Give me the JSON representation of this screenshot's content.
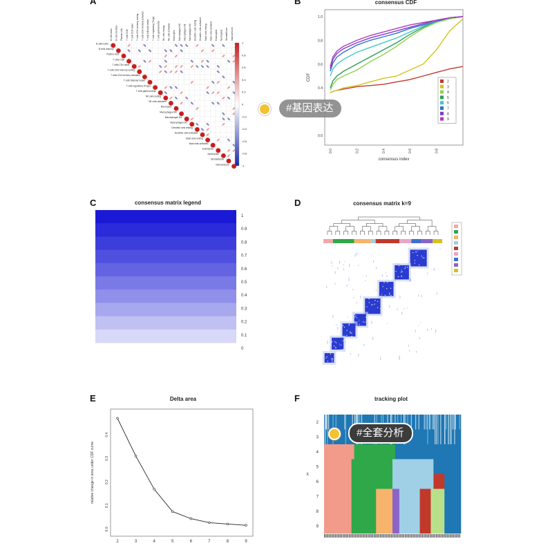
{
  "panel_letters": [
    "A",
    "B",
    "C",
    "D",
    "E",
    "F"
  ],
  "tags": [
    {
      "label": "#基因表达",
      "colors": {
        "pill": "#8a8a8a",
        "dot": "#f2c230"
      }
    },
    {
      "label": "#全套分析",
      "colors": {
        "pill": "#3c3c3c",
        "dot": "#f2c230"
      }
    }
  ],
  "chart_data": [
    {
      "panel": "A",
      "type": "heatmap",
      "title": "",
      "cell_types": [
        "B cells naive",
        "B cells memory",
        "Plasma cells",
        "T cells CD8",
        "T cells CD4 naive",
        "T cells CD4 memory resting",
        "T cells CD4 memory activated",
        "T cells follicular helper",
        "T cells regulatory (Tregs)",
        "T cells gamma delta",
        "NK cells resting",
        "NK cells activated",
        "Monocytes",
        "Macrophages M0",
        "Macrophages M1",
        "Macrophages M2",
        "Dendritic cells resting",
        "Dendritic cells activated",
        "Mast cells resting",
        "Mast cells activated",
        "Eosinophils",
        "Neutrophils",
        "StromalScore",
        "ImmuneScore"
      ],
      "colorbar_ticks": [
        "1",
        "0.8",
        "0.6",
        "0.4",
        "0.2",
        "0",
        "-0.2",
        "-0.4",
        "-0.6",
        "-0.8",
        "-1"
      ],
      "colormap": [
        "#1a2aa8",
        "#ffffff",
        "#c81e1e"
      ]
    },
    {
      "panel": "B",
      "type": "line",
      "title": "consensus CDF",
      "xlabel": "consensus index",
      "ylabel": "CDF",
      "xlim": [
        0,
        1
      ],
      "ylim": [
        0,
        1
      ],
      "x_ticks": [
        "0.0",
        "0.2",
        "0.4",
        "0.6",
        "0.8"
      ],
      "y_ticks": [
        "0.0",
        "0.2",
        "0.4",
        "0.6",
        "0.8",
        "1.0"
      ],
      "x": [
        0,
        0.02,
        0.05,
        0.1,
        0.2,
        0.3,
        0.4,
        0.5,
        0.6,
        0.7,
        0.8,
        0.9,
        1.0
      ],
      "series": [
        {
          "name": "2",
          "color": "#c0392b",
          "values": [
            0.36,
            0.37,
            0.38,
            0.39,
            0.41,
            0.42,
            0.43,
            0.45,
            0.47,
            0.5,
            0.53,
            0.56,
            0.58
          ]
        },
        {
          "name": "3",
          "color": "#d4c21f",
          "values": [
            0.36,
            0.37,
            0.38,
            0.4,
            0.42,
            0.45,
            0.48,
            0.5,
            0.55,
            0.6,
            0.72,
            0.88,
            0.98
          ]
        },
        {
          "name": "4",
          "color": "#8fd14f",
          "values": [
            0.38,
            0.43,
            0.47,
            0.5,
            0.55,
            0.62,
            0.68,
            0.75,
            0.83,
            0.9,
            0.95,
            0.98,
            1.0
          ]
        },
        {
          "name": "5",
          "color": "#2e9d56",
          "values": [
            0.4,
            0.46,
            0.5,
            0.54,
            0.6,
            0.66,
            0.72,
            0.78,
            0.85,
            0.91,
            0.96,
            0.99,
            1.0
          ]
        },
        {
          "name": "6",
          "color": "#3ec8c8",
          "values": [
            0.5,
            0.56,
            0.6,
            0.64,
            0.7,
            0.74,
            0.78,
            0.82,
            0.87,
            0.92,
            0.96,
            0.99,
            1.0
          ]
        },
        {
          "name": "7",
          "color": "#2f6fd0",
          "values": [
            0.54,
            0.61,
            0.66,
            0.7,
            0.76,
            0.8,
            0.83,
            0.86,
            0.9,
            0.93,
            0.96,
            0.99,
            1.0
          ]
        },
        {
          "name": "8",
          "color": "#7a3cc8",
          "values": [
            0.56,
            0.64,
            0.69,
            0.73,
            0.78,
            0.82,
            0.85,
            0.88,
            0.91,
            0.94,
            0.97,
            0.99,
            1.0
          ]
        },
        {
          "name": "9",
          "color": "#b03ab8",
          "values": [
            0.58,
            0.66,
            0.71,
            0.75,
            0.8,
            0.84,
            0.87,
            0.9,
            0.93,
            0.95,
            0.97,
            0.99,
            1.0
          ]
        }
      ]
    },
    {
      "panel": "C",
      "type": "heatmap",
      "title": "consensus matrix legend",
      "levels": [
        "1",
        "0.9",
        "0.8",
        "0.7",
        "0.6",
        "0.5",
        "0.4",
        "0.3",
        "0.2",
        "0.1",
        "0"
      ],
      "colors": [
        "#1a1ad6",
        "#2b2bd9",
        "#3d3ddc",
        "#5050e0",
        "#6464e3",
        "#7a7ae7",
        "#9090eb",
        "#a8a8ef",
        "#c0c0f3",
        "#d8d8f8",
        "#eeeefc"
      ]
    },
    {
      "panel": "D",
      "type": "heatmap",
      "title": "consensus matrix k=9",
      "cluster_colors": [
        "#f4a6a6",
        "#2fa84a",
        "#f6b36b",
        "#9fd0e6",
        "#c0392b",
        "#e8a6c8",
        "#3b6fd3",
        "#8a64c8",
        "#d4c21f"
      ]
    },
    {
      "panel": "E",
      "type": "line",
      "title": "Delta area",
      "xlabel": "",
      "ylabel": "relative change in area under CDF curve",
      "x": [
        2,
        3,
        4,
        5,
        6,
        7,
        8,
        9
      ],
      "values": [
        0.47,
        0.31,
        0.17,
        0.075,
        0.045,
        0.028,
        0.022,
        0.017
      ],
      "x_ticks": [
        "2",
        "3",
        "4",
        "5",
        "6",
        "7",
        "8",
        "9"
      ],
      "y_ticks": [
        "0.0",
        "0.1",
        "0.2",
        "0.3",
        "0.4"
      ],
      "xlim": [
        2,
        9
      ],
      "ylim": [
        0,
        0.48
      ]
    },
    {
      "panel": "F",
      "type": "heatmap",
      "title": "tracking plot",
      "ylabel": "k",
      "k_values": [
        "2",
        "3",
        "4",
        "5",
        "6",
        "7",
        "8",
        "9"
      ],
      "column_colors": [
        "#f29b8a",
        "#2fa84a",
        "#f6b36b",
        "#9fd0e6",
        "#c0392b",
        "#1f77b4",
        "#8a64c8",
        "#b8e08a"
      ]
    }
  ]
}
